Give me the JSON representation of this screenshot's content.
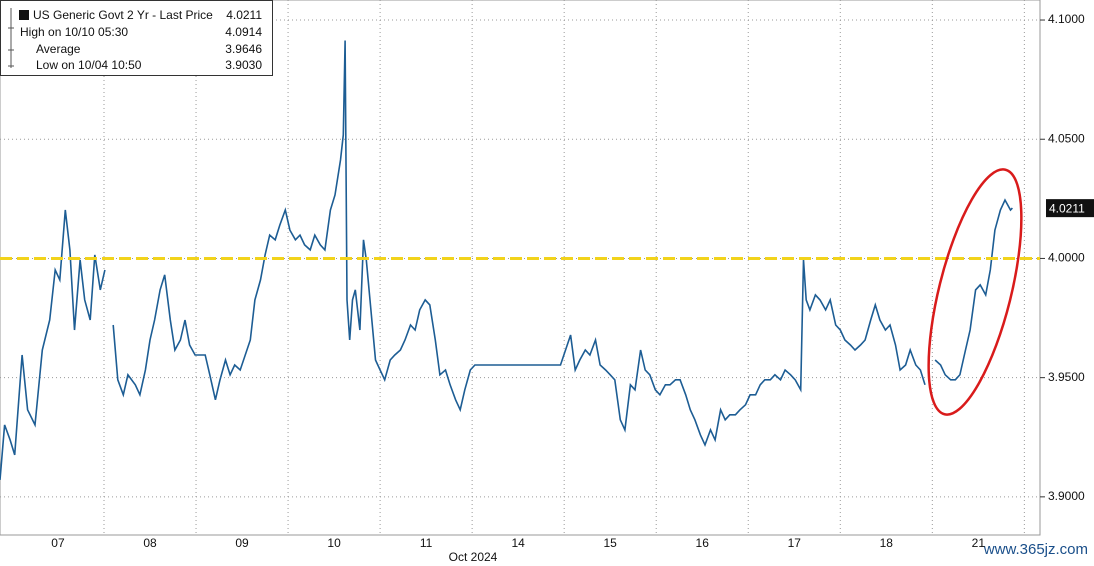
{
  "chart_data": {
    "type": "line",
    "legend": [
      {
        "label": "US Generic Govt 2 Yr - Last Price",
        "value": "4.0211"
      },
      {
        "label": "High on 10/10 05:30",
        "value": "4.0914"
      },
      {
        "label": "Average",
        "value": "3.9646"
      },
      {
        "label": "Low on 10/04 10:50",
        "value": "3.9030"
      }
    ],
    "x_label": "Oct 2024",
    "watermark": "www.365jz.com",
    "last_value_marker": 4.0211,
    "reference_line": {
      "value": 4.0,
      "color": "#f2d31b"
    },
    "x": [
      -0.63,
      -0.58,
      -0.52,
      -0.47,
      -0.39,
      -0.33,
      -0.25,
      -0.17,
      -0.09,
      -0.03,
      0.02,
      0.08,
      0.13,
      0.18,
      0.24,
      0.29,
      0.35,
      0.4,
      0.46,
      0.51,
      0.55,
      0.6,
      0.65,
      0.71,
      0.76,
      0.84,
      0.89,
      0.95,
      1.0,
      1.05,
      1.11,
      1.16,
      1.22,
      1.27,
      1.33,
      1.38,
      1.43,
      1.49,
      1.6,
      1.65,
      1.71,
      1.76,
      1.82,
      1.87,
      1.92,
      1.98,
      2.09,
      2.14,
      2.2,
      2.25,
      2.3,
      2.36,
      2.41,
      2.47,
      2.52,
      2.58,
      2.63,
      2.68,
      2.74,
      2.79,
      2.85,
      2.9,
      2.96,
      3.01,
      3.07,
      3.1,
      3.12,
      3.14,
      3.17,
      3.2,
      3.23,
      3.28,
      3.32,
      3.35,
      3.39,
      3.45,
      3.5,
      3.55,
      3.61,
      3.66,
      3.72,
      3.77,
      3.83,
      3.88,
      3.93,
      3.99,
      4.04,
      4.1,
      4.15,
      4.21,
      4.26,
      4.32,
      4.37,
      4.42,
      4.48,
      4.53,
      5.46,
      5.57,
      5.62,
      5.67,
      5.73,
      5.78,
      5.84,
      5.89,
      5.95,
      6.0,
      6.05,
      6.11,
      6.16,
      6.22,
      6.27,
      6.33,
      6.38,
      6.43,
      6.49,
      6.54,
      6.6,
      6.65,
      6.71,
      6.76,
      6.82,
      6.87,
      6.92,
      6.98,
      7.03,
      7.09,
      7.14,
      7.2,
      7.25,
      7.3,
      7.36,
      7.41,
      7.47,
      7.52,
      7.58,
      7.63,
      7.68,
      7.74,
      7.79,
      7.85,
      7.9,
      7.96,
      8.01,
      8.07,
      8.1,
      8.13,
      8.17,
      8.23,
      8.28,
      8.34,
      8.39,
      8.45,
      8.5,
      8.55,
      8.61,
      8.66,
      8.72,
      8.77,
      8.83,
      8.88,
      8.93,
      8.99,
      9.04,
      9.1,
      9.15,
      9.21,
      9.26,
      9.32,
      9.37,
      9.42,
      9.48,
      9.53,
      9.59,
      9.64,
      9.7,
      9.75,
      9.8,
      9.86,
      9.91,
      9.97,
      10.02,
      10.08,
      10.13,
      10.18,
      10.24,
      10.29,
      10.35,
      10.37
    ],
    "series": [
      {
        "name": "US Generic Govt 2 Yr",
        "color": "#1d5d94",
        "values": [
          3.9071,
          3.9302,
          3.9239,
          3.9176,
          3.9595,
          3.9365,
          3.9302,
          3.9616,
          3.9742,
          3.9952,
          3.991,
          4.0203,
          4.0036,
          3.97,
          3.9994,
          3.9826,
          3.9742,
          4.0015,
          3.9868,
          3.9952,
          null,
          3.9721,
          3.9491,
          3.9428,
          3.9512,
          3.947,
          3.9428,
          3.9532,
          3.9658,
          3.9742,
          3.9868,
          3.9931,
          3.9742,
          3.9616,
          3.9658,
          3.9742,
          3.9637,
          3.9595,
          3.9595,
          3.9512,
          3.9407,
          3.9491,
          3.9574,
          3.9512,
          3.9553,
          3.9532,
          3.9658,
          3.9826,
          3.991,
          4.0015,
          4.0098,
          4.0078,
          4.014,
          4.0203,
          4.0119,
          4.0078,
          4.0098,
          4.0057,
          4.0036,
          4.0098,
          4.0057,
          4.0036,
          4.0203,
          4.0266,
          4.0413,
          4.0518,
          4.0914,
          3.9826,
          3.9658,
          3.9826,
          3.9868,
          3.97,
          4.0078,
          3.9994,
          3.9826,
          3.9574,
          3.9532,
          3.9491,
          3.9574,
          3.9595,
          3.9616,
          3.9658,
          3.9721,
          3.97,
          3.9784,
          3.9826,
          3.9805,
          3.9658,
          3.9512,
          3.9532,
          3.947,
          3.9407,
          3.9365,
          3.9449,
          3.9532,
          3.9553,
          3.9553,
          3.9679,
          3.9532,
          3.9574,
          3.9616,
          3.9595,
          3.9658,
          3.9553,
          3.9532,
          3.9512,
          3.9491,
          3.9323,
          3.9281,
          3.947,
          3.9449,
          3.9616,
          3.9532,
          3.9512,
          3.9449,
          3.9428,
          3.947,
          3.947,
          3.9491,
          3.9491,
          3.9428,
          3.9365,
          3.9323,
          3.926,
          3.9218,
          3.9281,
          3.9239,
          3.9365,
          3.9323,
          3.9344,
          3.9344,
          3.9365,
          3.9386,
          3.9428,
          3.9428,
          3.947,
          3.9491,
          3.9491,
          3.9512,
          3.9491,
          3.9532,
          3.9512,
          3.9491,
          3.9449,
          3.9994,
          3.9826,
          3.9784,
          3.9847,
          3.9826,
          3.9784,
          3.9826,
          3.9721,
          3.97,
          3.9658,
          3.9637,
          3.9616,
          3.9637,
          3.9658,
          3.9742,
          3.9805,
          3.9742,
          3.97,
          3.9721,
          3.9637,
          3.9532,
          3.9553,
          3.9616,
          3.9553,
          3.9532,
          3.947,
          null,
          3.9574,
          3.9553,
          3.9512,
          3.9491,
          3.9491,
          3.9512,
          3.9616,
          3.97,
          3.9868,
          3.9889,
          3.9847,
          3.9952,
          4.0119,
          4.0203,
          4.0245,
          4.0203,
          4.0211
        ]
      }
    ],
    "xlim": [
      -0.63,
      10.67
    ],
    "xticks": [
      {
        "value": 0,
        "label": "07"
      },
      {
        "value": 1,
        "label": "08"
      },
      {
        "value": 2,
        "label": "09"
      },
      {
        "value": 3,
        "label": "10"
      },
      {
        "value": 4,
        "label": "11"
      },
      {
        "value": 5,
        "label": "14"
      },
      {
        "value": 6,
        "label": "15"
      },
      {
        "value": 7,
        "label": "16"
      },
      {
        "value": 8,
        "label": "17"
      },
      {
        "value": 9,
        "label": "18"
      },
      {
        "value": 10,
        "label": "21"
      }
    ],
    "ylim": [
      3.884,
      4.1084
    ],
    "yticks": [
      {
        "value": 3.9,
        "label": "3.9000"
      },
      {
        "value": 3.95,
        "label": "3.9500"
      },
      {
        "value": 4.0,
        "label": "4.0000"
      },
      {
        "value": 4.05,
        "label": "4.0500"
      },
      {
        "value": 4.1,
        "label": "4.1000"
      }
    ],
    "grid": true
  }
}
